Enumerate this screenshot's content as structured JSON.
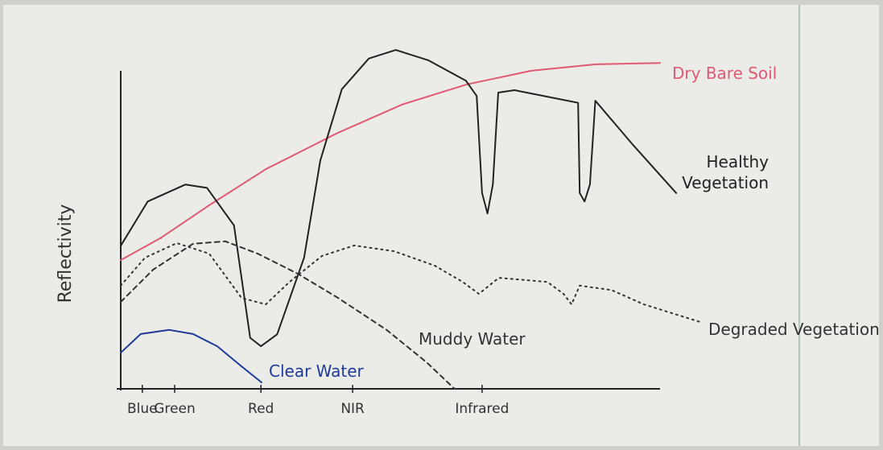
{
  "chart_data": {
    "type": "line",
    "y_label": "Reflectivity",
    "xlim": [
      0,
      100
    ],
    "ylim": [
      0,
      100
    ],
    "xticks": [
      {
        "value": 4,
        "label": "Blue"
      },
      {
        "value": 10,
        "label": "Green"
      },
      {
        "value": 26,
        "label": "Red"
      },
      {
        "value": 43,
        "label": "NIR"
      },
      {
        "value": 67,
        "label": "Infrared"
      }
    ],
    "series": [
      {
        "name": "Dry Bare Soil",
        "color": "#e05a72",
        "line_style": "solid",
        "x": [
          0,
          7.5,
          16.4,
          26.9,
          40.3,
          52.2,
          64.2,
          76.1,
          88.1,
          100
        ],
        "values": [
          37.8,
          44.4,
          53.9,
          64.5,
          75.2,
          83.5,
          89.4,
          93.4,
          95.3,
          95.7
        ]
      },
      {
        "name": "Healthy Vegetation",
        "color": "#222222",
        "line_style": "solid",
        "x": [
          0,
          5,
          12,
          16,
          21,
          24,
          26,
          29,
          34,
          37,
          41,
          46,
          51,
          57,
          64,
          66,
          67,
          68,
          69,
          70,
          73,
          84.8,
          85.1,
          86,
          87,
          88,
          95,
          103
        ],
        "values": [
          42,
          55,
          60,
          59,
          48,
          15,
          12.5,
          16,
          38.5,
          67,
          88,
          97,
          99.5,
          96.5,
          90.5,
          86,
          57.5,
          51.5,
          60,
          87,
          87.7,
          84,
          57.5,
          55,
          60,
          84.6,
          71.6,
          57.5
        ]
      },
      {
        "name": "Degraded Vegetation",
        "color": "#333333",
        "line_style": "dotted",
        "x": [
          0,
          4.5,
          10.4,
          16.4,
          22.4,
          26.9,
          31.3,
          37.3,
          43.3,
          50.7,
          58.2,
          63.4,
          66.4,
          70.1,
          79.1,
          82.1,
          83.6,
          85.1,
          91,
          97,
          107.5
        ],
        "values": [
          30.3,
          38.5,
          42.8,
          39.7,
          26.7,
          24.8,
          31.4,
          39,
          42.1,
          40.4,
          36.2,
          31.4,
          27.9,
          32.6,
          31.4,
          27.9,
          24.8,
          30.3,
          29,
          24.8,
          19.6
        ]
      },
      {
        "name": "Muddy Water",
        "color": "#333333",
        "line_style": "dashed",
        "x": [
          0,
          6,
          13.4,
          19.4,
          25.4,
          32.8,
          40.3,
          49.3,
          56.7,
          61.9
        ],
        "values": [
          25.5,
          35,
          42.6,
          43.3,
          39.7,
          33.8,
          26.7,
          17.3,
          7.8,
          0
        ]
      },
      {
        "name": "Clear Water",
        "color": "#1f3a9a",
        "line_style": "solid",
        "x": [
          0,
          3.7,
          9,
          13.4,
          17.9,
          22.4,
          26.1
        ],
        "values": [
          10.6,
          16.1,
          17.3,
          16.1,
          12.5,
          6.6,
          1.9
        ]
      }
    ]
  }
}
